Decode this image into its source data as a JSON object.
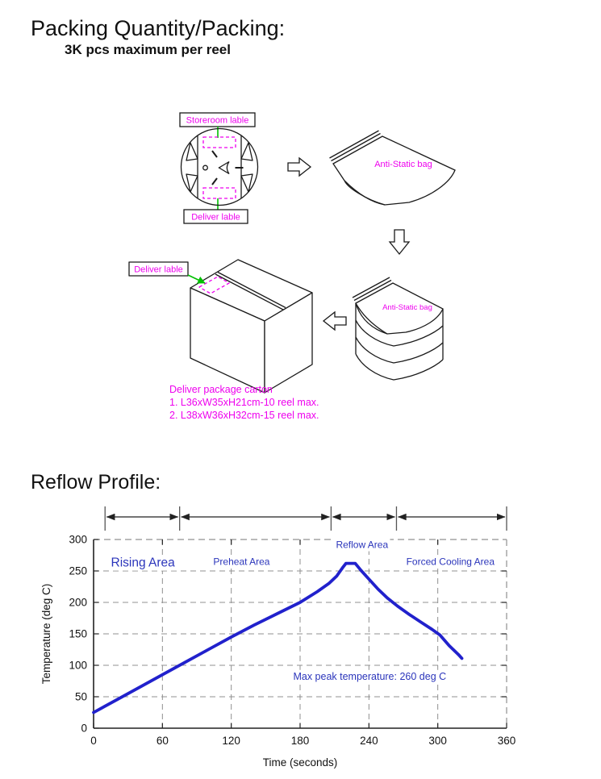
{
  "header": {
    "packing_title": "Packing Quantity/Packing:",
    "packing_subtitle": "3K pcs maximum per reel",
    "reflow_title": "Reflow Profile:"
  },
  "packing_diagram": {
    "storeroom_label": "Storeroom lable",
    "reel_deliver_label": "Deliver lable",
    "bag_label": "Anti-Static bag",
    "bag_stack_label": "Anti-Static bag",
    "carton_deliver_label": "Deliver lable",
    "carton_caption": [
      "Deliver package carton",
      "1. L36xW35xH21cm-10 reel max.",
      "2. L38xW36xH32cm-15 reel max."
    ],
    "colors": {
      "label_magenta": "#ee00ee",
      "leader_green": "#00c000",
      "outline": "#1a1a1a"
    }
  },
  "chart_data": {
    "type": "line",
    "title": "",
    "xlabel": "Time (seconds)",
    "ylabel": "Temperature (deg C)",
    "xlim": [
      0,
      360
    ],
    "ylim": [
      0,
      300
    ],
    "xticks": [
      0,
      60,
      120,
      180,
      240,
      300,
      360
    ],
    "yticks": [
      0,
      50,
      100,
      150,
      200,
      250,
      300
    ],
    "grid": true,
    "legend": "none",
    "line_color": "#2121cc",
    "label_color": "#2b35bb",
    "grid_color": "#909090",
    "axis_color": "#222222",
    "series": [
      {
        "name": "reflow-temperature",
        "points": [
          [
            0,
            25
          ],
          [
            20,
            45
          ],
          [
            40,
            65
          ],
          [
            60,
            85
          ],
          [
            80,
            105
          ],
          [
            100,
            125
          ],
          [
            120,
            145
          ],
          [
            140,
            164
          ],
          [
            160,
            182
          ],
          [
            180,
            200
          ],
          [
            195,
            217
          ],
          [
            205,
            230
          ],
          [
            212,
            242
          ],
          [
            217,
            255
          ],
          [
            220,
            262
          ],
          [
            228,
            262
          ],
          [
            233,
            251
          ],
          [
            240,
            237
          ],
          [
            248,
            221
          ],
          [
            256,
            207
          ],
          [
            265,
            194
          ],
          [
            275,
            181
          ],
          [
            285,
            169
          ],
          [
            295,
            157
          ],
          [
            302,
            148
          ],
          [
            310,
            131
          ],
          [
            318,
            117
          ],
          [
            321,
            111
          ]
        ]
      }
    ],
    "annotations": [
      {
        "text": "Rising Area",
        "x": 43,
        "y": 264,
        "size": 15.5
      },
      {
        "text": "Preheat Area",
        "x": 129,
        "y": 265,
        "size": 12
      },
      {
        "text": "Reflow Area",
        "x": 234,
        "y": 292,
        "size": 12
      },
      {
        "text": "Forced Cooling Area",
        "x": 311,
        "y": 265,
        "size": 12
      },
      {
        "text": "Max peak temperature: 260 deg C",
        "x": 174,
        "y": 83,
        "size": 12.5,
        "anchor": "start"
      }
    ],
    "areas_boundaries_seconds": [
      10,
      75,
      207,
      264,
      360
    ],
    "max_peak_temperature_c": 260
  }
}
